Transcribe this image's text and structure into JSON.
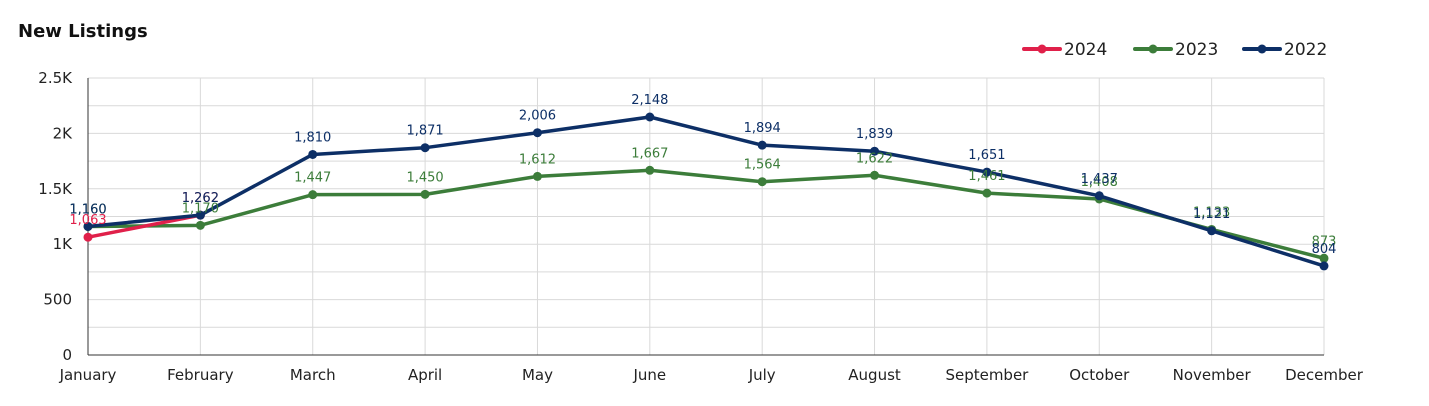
{
  "chart_data": {
    "type": "line",
    "title": "New Listings",
    "xlabel": "",
    "ylabel": "",
    "ylim": [
      0,
      2500
    ],
    "yticks": [
      0,
      500,
      1000,
      1500,
      2000,
      2500
    ],
    "ytick_labels": [
      "0",
      "500",
      "1K",
      "1.5K",
      "2K",
      "2.5K"
    ],
    "grid": true,
    "legend_position": "top-right",
    "categories": [
      "January",
      "February",
      "March",
      "April",
      "May",
      "June",
      "July",
      "August",
      "September",
      "October",
      "November",
      "December"
    ],
    "series": [
      {
        "name": "2024",
        "color": "#e0204a",
        "values": [
          1063,
          1262,
          null,
          null,
          null,
          null,
          null,
          null,
          null,
          null,
          null,
          null
        ],
        "labels": [
          "1,063",
          "1,262",
          null,
          null,
          null,
          null,
          null,
          null,
          null,
          null,
          null,
          null
        ]
      },
      {
        "name": "2023",
        "color": "#3c7d3a",
        "values": [
          1160,
          1170,
          1447,
          1450,
          1612,
          1667,
          1564,
          1622,
          1461,
          1408,
          1133,
          873
        ],
        "labels": [
          "1,160",
          "1,170",
          "1,447",
          "1,450",
          "1,612",
          "1,667",
          "1,564",
          "1,622",
          "1,461",
          "1,408",
          "1,133",
          "873"
        ]
      },
      {
        "name": "2022",
        "color": "#0d2f66",
        "values": [
          1160,
          1262,
          1810,
          1871,
          2006,
          2148,
          1894,
          1839,
          1651,
          1437,
          1121,
          804
        ],
        "labels": [
          "1,160",
          "1,262",
          "1,810",
          "1,871",
          "2,006",
          "2,148",
          "1,894",
          "1,839",
          "1,651",
          "1,437",
          "1,121",
          "804"
        ]
      }
    ]
  }
}
